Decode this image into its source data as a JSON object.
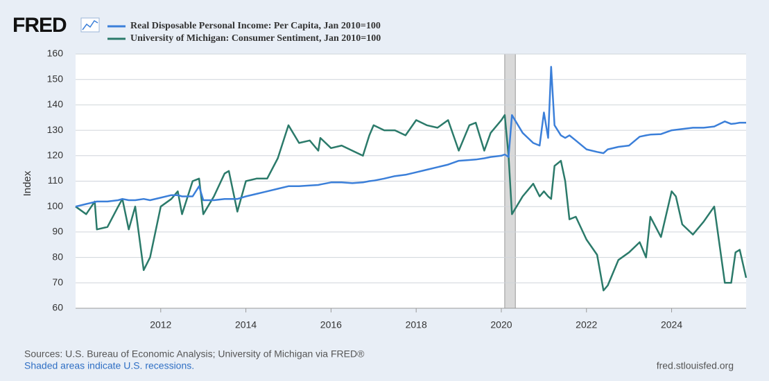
{
  "logo": "FRED",
  "chart_data": {
    "type": "line",
    "y_label": "Index",
    "x": [
      2010,
      2010.25,
      2010.45,
      2010.5,
      2010.75,
      2011,
      2011.1,
      2011.25,
      2011.4,
      2011.6,
      2011.75,
      2012,
      2012.25,
      2012.4,
      2012.5,
      2012.75,
      2012.9,
      2013,
      2013.25,
      2013.5,
      2013.6,
      2013.8,
      2014,
      2014.25,
      2014.5,
      2014.75,
      2015,
      2015.25,
      2015.5,
      2015.7,
      2015.75,
      2016,
      2016.25,
      2016.5,
      2016.75,
      2016.9,
      2017,
      2017.25,
      2017.5,
      2017.75,
      2018,
      2018.25,
      2018.5,
      2018.75,
      2019,
      2019.25,
      2019.4,
      2019.6,
      2019.75,
      2020,
      2020.08,
      2020.17,
      2020.25,
      2020.5,
      2020.75,
      2020.9,
      2021,
      2021.1,
      2021.17,
      2021.25,
      2021.4,
      2021.5,
      2021.6,
      2021.75,
      2022,
      2022.25,
      2022.4,
      2022.5,
      2022.75,
      2023,
      2023.25,
      2023.4,
      2023.5,
      2023.75,
      2024,
      2024.1,
      2024.25,
      2024.5,
      2024.75,
      2025,
      2025.25,
      2025.4,
      2025.5,
      2025.6,
      2025.75
    ],
    "series": [
      {
        "name": "Real Disposable Personal Income: Per Capita, Jan 2010=100",
        "color": "#3b7fd9",
        "values": [
          100,
          101,
          101.8,
          102,
          102,
          102.5,
          103,
          102.5,
          102.5,
          103,
          102.5,
          103.5,
          104.5,
          104.5,
          104,
          104,
          108,
          102.5,
          102.5,
          103,
          103,
          103,
          104,
          105,
          106,
          107,
          108,
          108,
          108.3,
          108.5,
          108.7,
          109.5,
          109.5,
          109.2,
          109.5,
          110,
          110.2,
          111,
          112,
          112.5,
          113.5,
          114.5,
          115.5,
          116.5,
          118,
          118.3,
          118.5,
          119,
          119.5,
          120,
          120.5,
          119.5,
          136,
          129,
          125,
          124,
          137,
          127,
          155,
          132,
          128,
          127,
          128,
          126,
          122.5,
          121.5,
          121,
          122.5,
          123.5,
          124,
          127.5,
          128,
          128.3,
          128.5,
          130,
          130.2,
          130.5,
          131,
          131,
          131.5,
          133.5,
          132.5,
          132.7,
          133,
          133
        ]
      },
      {
        "name": "University of Michigan: Consumer Sentiment, Jan 2010=100",
        "color": "#2b7a6a",
        "values": [
          100,
          97,
          102,
          91,
          92,
          100,
          103,
          91,
          100,
          75,
          80,
          100,
          103,
          106,
          97,
          110,
          111,
          97,
          104,
          113,
          114,
          98,
          110,
          111,
          111,
          119,
          132,
          125,
          126,
          122,
          127,
          123,
          124,
          122,
          120,
          128,
          132,
          130,
          130,
          128,
          134,
          132,
          131,
          134,
          122,
          132,
          133,
          122,
          129,
          134,
          136,
          120,
          97,
          104,
          109,
          104,
          106,
          104,
          103,
          116,
          118,
          110,
          95,
          96,
          87,
          81,
          67,
          69,
          79,
          82,
          86,
          80,
          96,
          88,
          106,
          104,
          93,
          89,
          94,
          100,
          70,
          70,
          82,
          83,
          72
        ]
      }
    ],
    "recessions": [
      {
        "start": 2020.08,
        "end": 2020.33
      }
    ],
    "xlim": [
      2010,
      2025.75
    ],
    "xticks": [
      2012,
      2014,
      2016,
      2018,
      2020,
      2022,
      2024
    ],
    "ylim": [
      60,
      160
    ],
    "yticks": [
      60,
      70,
      80,
      90,
      100,
      110,
      120,
      130,
      140,
      150,
      160
    ],
    "grid": true,
    "sources": "Sources: U.S. Bureau of Economic Analysis; University of Michigan via FRED®",
    "note": "Shaded areas indicate U.S. recessions.",
    "site": "fred.stlouisfed.org"
  }
}
